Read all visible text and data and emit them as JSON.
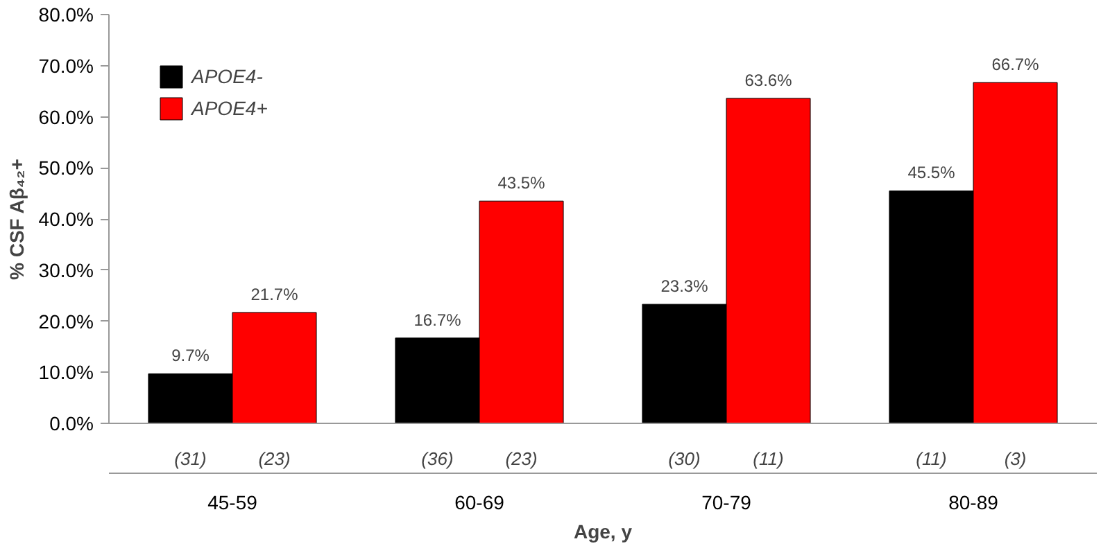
{
  "chart_data": {
    "type": "bar",
    "xlabel": "Age, y",
    "ylabel": "% CSF Aβ₄₂+",
    "categories": [
      "45-59",
      "60-69",
      "70-79",
      "80-89"
    ],
    "series": [
      {
        "name": "APOE4-",
        "color": "#000000",
        "values": [
          9.7,
          16.7,
          23.3,
          45.5
        ],
        "value_labels": [
          "9.7%",
          "16.7%",
          "23.3%",
          "45.5%"
        ]
      },
      {
        "name": "APOE4+",
        "color": "#ff0000",
        "values": [
          21.7,
          43.5,
          63.6,
          66.7
        ],
        "value_labels": [
          "21.7%",
          "43.5%",
          "63.6%",
          "66.7%"
        ]
      }
    ],
    "ylim": [
      0,
      80
    ],
    "yticks": [
      {
        "value": 0,
        "label": "0.0%"
      },
      {
        "value": 10,
        "label": "10.0%"
      },
      {
        "value": 20,
        "label": "20.0%"
      },
      {
        "value": 30,
        "label": "30.0%"
      },
      {
        "value": 40,
        "label": "40.0%"
      },
      {
        "value": 50,
        "label": "50.0%"
      },
      {
        "value": 60,
        "label": "60.0%"
      },
      {
        "value": 70,
        "label": "70.0%"
      },
      {
        "value": 80,
        "label": "80.0%"
      }
    ],
    "annotations": [
      "(31)",
      "(23)",
      "(36)",
      "(23)",
      "(30)",
      "(11)",
      "(11)",
      "(3)"
    ],
    "grid": false,
    "legend": "top left"
  }
}
